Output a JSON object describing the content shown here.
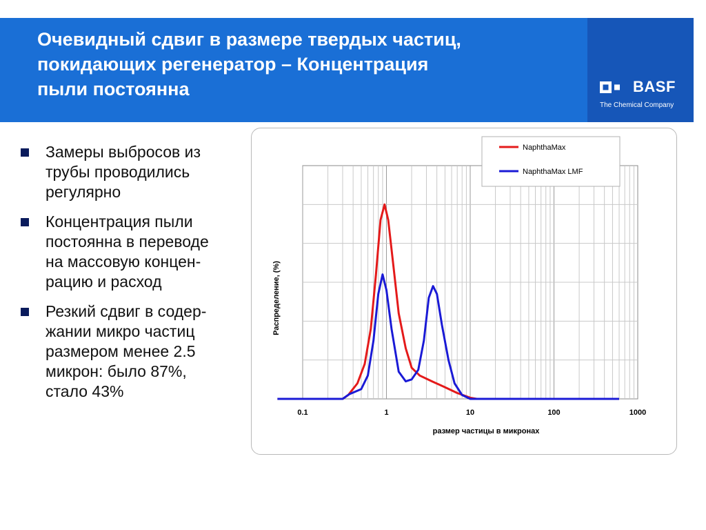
{
  "slide": {
    "title": "Очевидный сдвиг в размере твердых частиц,\nпокидающих регенератор  – Концентрация\nпыли постоянна",
    "colors": {
      "header": "#1a6fd6",
      "header_shade": "#1656b8",
      "bullet": "#0a1b5c"
    }
  },
  "logo": {
    "word": "BASF",
    "tagline": "The Chemical Company"
  },
  "bullets": [
    "Замеры выбросов из\nтрубы проводились\nрегулярно",
    "Концентрация пыли\nпостоянна в переводе\nна массовую концен-\nрацию и расход",
    "Резкий сдвиг в содер-\nжании микро частиц\nразмером менее 2.5\nмикрон:  было 87%,\nстало  43%"
  ],
  "chart_data": {
    "type": "line",
    "xlabel": "размер частицы в микронах",
    "ylabel": "Распределение, (%)",
    "x_scale": "log",
    "xlim": [
      0.1,
      1000
    ],
    "ylim": [
      0,
      6
    ],
    "x_ticks": [
      "0.1",
      "1",
      "10",
      "100",
      "1000"
    ],
    "grid": true,
    "legend": "top-right",
    "series": [
      {
        "name": "NaphthaMax",
        "color": "#e41a1a",
        "points": [
          [
            0.05,
            0
          ],
          [
            0.3,
            0
          ],
          [
            0.35,
            0.1
          ],
          [
            0.45,
            0.4
          ],
          [
            0.55,
            0.9
          ],
          [
            0.65,
            1.8
          ],
          [
            0.75,
            3.2
          ],
          [
            0.85,
            4.6
          ],
          [
            0.95,
            5.0
          ],
          [
            1.05,
            4.6
          ],
          [
            1.2,
            3.5
          ],
          [
            1.4,
            2.2
          ],
          [
            1.7,
            1.3
          ],
          [
            2.0,
            0.8
          ],
          [
            2.5,
            0.6
          ],
          [
            3.5,
            0.45
          ],
          [
            5,
            0.3
          ],
          [
            7,
            0.15
          ],
          [
            10,
            0.03
          ],
          [
            12,
            0
          ],
          [
            600,
            0
          ]
        ]
      },
      {
        "name": "NaphthaMax LMF",
        "color": "#1a1ad6",
        "points": [
          [
            0.05,
            0
          ],
          [
            0.3,
            0
          ],
          [
            0.36,
            0.12
          ],
          [
            0.5,
            0.25
          ],
          [
            0.6,
            0.6
          ],
          [
            0.7,
            1.5
          ],
          [
            0.8,
            2.7
          ],
          [
            0.9,
            3.2
          ],
          [
            1.0,
            2.8
          ],
          [
            1.15,
            1.8
          ],
          [
            1.4,
            0.7
          ],
          [
            1.7,
            0.45
          ],
          [
            2.0,
            0.5
          ],
          [
            2.4,
            0.75
          ],
          [
            2.8,
            1.5
          ],
          [
            3.2,
            2.6
          ],
          [
            3.6,
            2.9
          ],
          [
            4.0,
            2.7
          ],
          [
            4.6,
            1.9
          ],
          [
            5.5,
            1.0
          ],
          [
            6.5,
            0.4
          ],
          [
            8,
            0.1
          ],
          [
            10,
            0
          ],
          [
            600,
            0
          ]
        ]
      }
    ]
  }
}
